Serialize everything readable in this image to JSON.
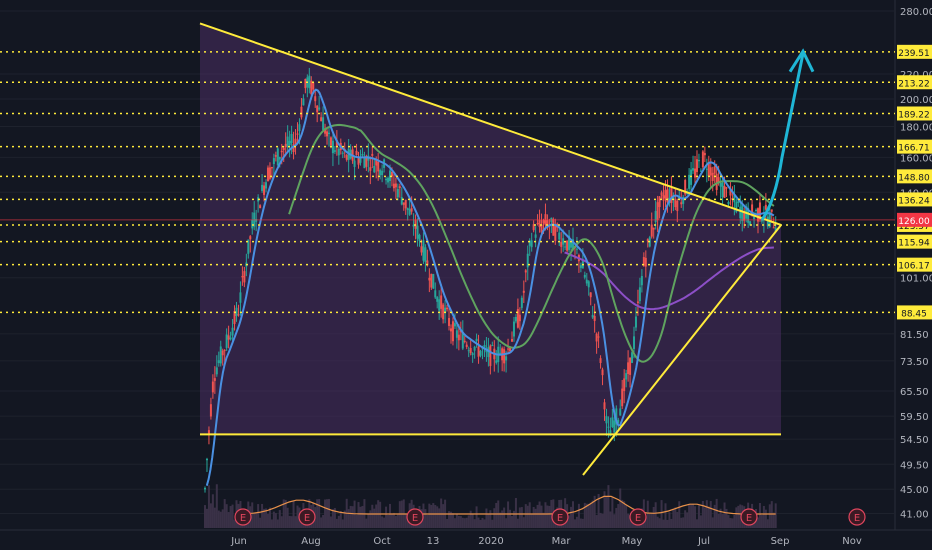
{
  "chart_data": {
    "type": "candlestick-with-annotations",
    "title": "",
    "x_tick_labels": [
      "Jun",
      "Aug",
      "Oct",
      "13",
      "2020",
      "Mar",
      "May",
      "Jul",
      "Sep",
      "Nov"
    ],
    "y_tick_labels": [
      280.0,
      220.0,
      200.0,
      180.0,
      160.0,
      140.0,
      101.0,
      81.5,
      73.5,
      65.5,
      59.5,
      54.5,
      49.5,
      45.0,
      41.0
    ],
    "y_scale": "log",
    "ylim": [
      38.5,
      292
    ],
    "level_lines": [
      239.51,
      213.22,
      189.22,
      166.71,
      148.8,
      136.24,
      123.57,
      115.94,
      106.17,
      88.45
    ],
    "current_price": 126.0,
    "horizontal_support": 55.5,
    "colors": {
      "background": "#131722",
      "levels": "#ffeb3b",
      "triangle": "#ffeb3b",
      "fill": "#4a2d63",
      "ma_fast": "#4a90e2",
      "ma_mid": "#5fa35f",
      "ma_slow": "#8c4fc7",
      "arrow": "#1fb6d6",
      "current_price": "#f23645",
      "volume_line": "#e8914a",
      "earnings": "#e0455d"
    },
    "earnings_marker_label": "E",
    "earnings_markers": 8
  }
}
